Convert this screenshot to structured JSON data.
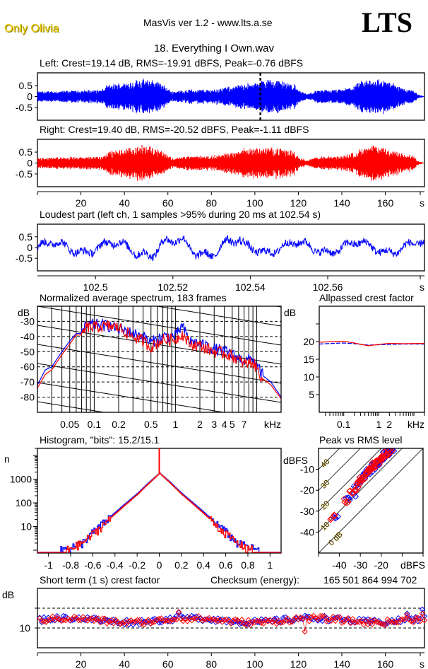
{
  "header": {
    "artist": "Only Olivia",
    "app_title": "MasVis ver 1.2 - www.lts.a.se",
    "logo": "LTS",
    "track": "18. Everything I Own.wav"
  },
  "colors": {
    "left": "#0000ff",
    "right": "#ff0000",
    "artist": "#e8c800"
  },
  "chart_data": [
    {
      "id": "left-waveform",
      "type": "line",
      "title": "Left: Crest=19.14 dB, RMS=-19.91 dBFS, Peak=-0.76 dBFS",
      "series": [
        {
          "name": "Left",
          "color": "#0000ff"
        }
      ],
      "xlim": [
        0,
        178
      ],
      "ylim": [
        -1,
        1
      ],
      "yticks": [
        0.5,
        0,
        -0.5
      ],
      "ytick_labels": [
        "0.5",
        "0",
        "-0.5"
      ],
      "marker_at_s": 102.54,
      "envelope": [
        [
          0,
          0.25
        ],
        [
          10,
          0.28
        ],
        [
          20,
          0.3
        ],
        [
          30,
          0.35
        ],
        [
          32,
          0.55
        ],
        [
          40,
          0.7
        ],
        [
          47,
          0.85
        ],
        [
          55,
          0.8
        ],
        [
          60,
          0.4
        ],
        [
          62,
          0.25
        ],
        [
          70,
          0.35
        ],
        [
          80,
          0.35
        ],
        [
          90,
          0.5
        ],
        [
          95,
          0.65
        ],
        [
          100,
          0.65
        ],
        [
          102,
          0.7
        ],
        [
          104,
          0.85
        ],
        [
          110,
          0.85
        ],
        [
          118,
          0.6
        ],
        [
          120,
          0.35
        ],
        [
          124,
          0.12
        ],
        [
          128,
          0.3
        ],
        [
          140,
          0.35
        ],
        [
          146,
          0.55
        ],
        [
          150,
          0.8
        ],
        [
          155,
          0.9
        ],
        [
          160,
          0.8
        ],
        [
          165,
          0.6
        ],
        [
          170,
          0.35
        ],
        [
          172,
          0.45
        ],
        [
          175,
          0.1
        ],
        [
          178,
          0.02
        ]
      ]
    },
    {
      "id": "right-waveform",
      "type": "line",
      "title": "Right: Crest=19.40 dB, RMS=-20.52 dBFS, Peak=-1.11 dBFS",
      "series": [
        {
          "name": "Right",
          "color": "#ff0000"
        }
      ],
      "xlim": [
        0,
        178
      ],
      "ylim": [
        -1,
        1
      ],
      "yticks": [
        0.5,
        0,
        -0.5
      ],
      "ytick_labels": [
        "0.5",
        "0",
        "-0.5"
      ],
      "xticks": [
        20,
        40,
        60,
        80,
        100,
        120,
        140,
        160
      ],
      "xlabel": "s",
      "envelope": [
        [
          0,
          0.25
        ],
        [
          10,
          0.28
        ],
        [
          20,
          0.3
        ],
        [
          30,
          0.35
        ],
        [
          32,
          0.55
        ],
        [
          40,
          0.7
        ],
        [
          47,
          0.85
        ],
        [
          55,
          0.75
        ],
        [
          60,
          0.4
        ],
        [
          62,
          0.25
        ],
        [
          70,
          0.35
        ],
        [
          80,
          0.35
        ],
        [
          90,
          0.55
        ],
        [
          95,
          0.7
        ],
        [
          105,
          0.75
        ],
        [
          110,
          0.75
        ],
        [
          118,
          0.6
        ],
        [
          120,
          0.35
        ],
        [
          124,
          0.12
        ],
        [
          128,
          0.3
        ],
        [
          140,
          0.35
        ],
        [
          146,
          0.55
        ],
        [
          150,
          0.75
        ],
        [
          155,
          0.85
        ],
        [
          160,
          0.75
        ],
        [
          165,
          0.6
        ],
        [
          170,
          0.35
        ],
        [
          172,
          0.45
        ],
        [
          175,
          0.1
        ],
        [
          178,
          0.02
        ]
      ]
    },
    {
      "id": "loudest-part",
      "type": "line",
      "title": "Loudest part (left  ch, 1 samples >95% during 20 ms at 102.54 s)",
      "series": [
        {
          "name": "Left",
          "color": "#0000ff"
        }
      ],
      "xlim": [
        102.485,
        102.585
      ],
      "ylim": [
        -1,
        1
      ],
      "xticks": [
        102.5,
        102.52,
        102.54,
        102.56
      ],
      "xtick_labels": [
        "102.5",
        "102.52",
        "102.54",
        "102.56"
      ],
      "xlabel": "s",
      "yticks": [
        0.5,
        0,
        -0.5
      ],
      "ytick_labels": [
        "0.5",
        "0",
        "-0.5"
      ]
    },
    {
      "id": "spectrum",
      "type": "line",
      "title": "Normalized average spectrum, 183 frames",
      "ylabel": "dB",
      "xlabel": "kHz",
      "xscale": "log",
      "xlim": [
        0.02,
        20
      ],
      "ylim": [
        -90,
        -20
      ],
      "yticks": [
        -30,
        -40,
        -50,
        -60,
        -70,
        -80
      ],
      "ytick_labels": [
        "-30",
        "-40",
        "-50",
        "-60",
        "-70",
        "-80"
      ],
      "xticks": [
        0.05,
        0.1,
        0.2,
        0.5,
        1,
        2,
        3,
        4,
        5,
        7
      ],
      "xtick_labels": [
        "0.05",
        "0.1",
        "0.2",
        "0.5",
        "1",
        "2",
        "3",
        "4",
        "5",
        "7"
      ],
      "series": [
        {
          "name": "Left",
          "color": "#0000ff",
          "x": [
            0.02,
            0.025,
            0.03,
            0.04,
            0.05,
            0.06,
            0.07,
            0.08,
            0.1,
            0.15,
            0.2,
            0.3,
            0.4,
            0.5,
            0.7,
            1,
            1.2,
            1.5,
            2,
            3,
            4,
            5,
            7,
            9,
            12,
            15,
            20
          ],
          "y": [
            -72,
            -62,
            -60,
            -50,
            -43,
            -38,
            -38,
            -33,
            -32,
            -33,
            -35,
            -38,
            -40,
            -44,
            -40,
            -40,
            -33,
            -43,
            -45,
            -48,
            -50,
            -52,
            -56,
            -55,
            -66,
            -70,
            -80
          ]
        },
        {
          "name": "Right",
          "color": "#ff0000",
          "x": [
            0.02,
            0.025,
            0.03,
            0.04,
            0.05,
            0.06,
            0.07,
            0.08,
            0.1,
            0.15,
            0.2,
            0.3,
            0.4,
            0.5,
            0.7,
            1,
            1.2,
            1.5,
            2,
            3,
            4,
            5,
            7,
            9,
            12,
            15,
            20
          ],
          "y": [
            -74,
            -65,
            -62,
            -52,
            -45,
            -39,
            -39,
            -34,
            -34,
            -33,
            -34,
            -40,
            -43,
            -47,
            -42,
            -42,
            -38,
            -45,
            -46,
            -50,
            -51,
            -53,
            -58,
            -57,
            -68,
            -72,
            -81
          ]
        }
      ]
    },
    {
      "id": "allpassed-crest",
      "type": "line",
      "title": "Allpassed crest factor",
      "ylabel": "dB",
      "xlabel": "kHz",
      "xscale": "log",
      "xlim": [
        0.02,
        20
      ],
      "ylim": [
        0,
        30
      ],
      "yticks": [
        20,
        15,
        10,
        5
      ],
      "ytick_labels": [
        "20",
        "15",
        "10",
        "5"
      ],
      "xtick_labels": [
        "0.1",
        "1",
        "2"
      ],
      "xticks": [
        0.1,
        1,
        2
      ],
      "series": [
        {
          "name": "Left",
          "color": "#0000ff",
          "x": [
            0.02,
            0.05,
            0.1,
            0.2,
            0.5,
            1,
            2,
            5,
            20
          ],
          "y": [
            19.3,
            19.5,
            19.6,
            19.4,
            19.0,
            19.1,
            19.2,
            19.3,
            19.3
          ]
        },
        {
          "name": "Right",
          "color": "#ff0000",
          "x": [
            0.02,
            0.05,
            0.1,
            0.2,
            0.5,
            1,
            2,
            5,
            20
          ],
          "y": [
            19.8,
            20.0,
            20.1,
            19.6,
            18.8,
            19.2,
            19.5,
            19.4,
            19.5
          ]
        }
      ]
    },
    {
      "id": "histogram",
      "type": "line",
      "title": "Histogram, \"bits\": 15.2/15.1",
      "ylabel": "n",
      "yscale": "log",
      "ylim": [
        1,
        20000
      ],
      "xlim": [
        -1.1,
        1.1
      ],
      "yticks": [
        1000,
        100,
        10
      ],
      "ytick_labels": [
        "1000",
        "100",
        "10"
      ],
      "xticks": [
        -1,
        -0.8,
        -0.6,
        -0.4,
        -0.2,
        0,
        0.2,
        0.4,
        0.6,
        0.8,
        1
      ],
      "xtick_labels": [
        "-1",
        "-0.8",
        "-0.6",
        "-0.4",
        "-0.2",
        "0",
        "0.2",
        "0.4",
        "0.6",
        "0.8",
        "1"
      ],
      "series": [
        {
          "name": "Left",
          "color": "#0000ff",
          "x": [
            -0.9,
            -0.7,
            -0.6,
            -0.5,
            -0.4,
            -0.3,
            -0.2,
            -0.1,
            0,
            0.1,
            0.2,
            0.3,
            0.4,
            0.5,
            0.6,
            0.7,
            0.9
          ],
          "y": [
            1,
            2,
            6,
            15,
            40,
            100,
            250,
            700,
            1800,
            700,
            250,
            100,
            40,
            15,
            6,
            2,
            1
          ]
        },
        {
          "name": "Right",
          "color": "#ff0000",
          "x": [
            -0.85,
            -0.7,
            -0.6,
            -0.5,
            -0.4,
            -0.3,
            -0.2,
            -0.1,
            0,
            0.1,
            0.2,
            0.3,
            0.4,
            0.5,
            0.6,
            0.7,
            0.85
          ],
          "y": [
            1,
            2,
            5,
            13,
            35,
            90,
            230,
            650,
            1800,
            650,
            230,
            90,
            35,
            13,
            5,
            2,
            1
          ]
        }
      ]
    },
    {
      "id": "peak-vs-rms",
      "type": "scatter",
      "title": "Peak vs RMS level",
      "ylabel": "dBFS",
      "xlabel": "dBFS",
      "xlim": [
        -50,
        0
      ],
      "ylim": [
        -50,
        0
      ],
      "xticks": [
        -40,
        -30,
        -20
      ],
      "xtick_labels": [
        "-40",
        "-30",
        "-20"
      ],
      "yticks": [
        -10,
        -20,
        -30,
        -40
      ],
      "ytick_labels": [
        "-10",
        "-20",
        "-30",
        "-40"
      ],
      "crest_lines_db": [
        0,
        10,
        20,
        30,
        40
      ],
      "crest_line_labels": [
        "0 dB",
        "10",
        "20",
        "30",
        "40"
      ],
      "series": [
        {
          "name": "Left",
          "color": "#0000ff",
          "x": [
            -42,
            -36,
            -33,
            -32,
            -30,
            -29,
            -28,
            -27,
            -26,
            -25,
            -24,
            -23,
            -22,
            -21,
            -20,
            -19,
            -18,
            -17,
            -16,
            -15,
            -15
          ],
          "y": [
            -33,
            -24,
            -22,
            -18,
            -15,
            -14,
            -13,
            -12,
            -11,
            -10,
            -9,
            -8,
            -7,
            -6,
            -5,
            -4,
            -3,
            -2,
            -1,
            -1,
            -2
          ]
        },
        {
          "name": "Right",
          "color": "#ff0000",
          "x": [
            -43,
            -37,
            -34,
            -32,
            -31,
            -30,
            -29,
            -28,
            -27,
            -26,
            -25,
            -24,
            -23,
            -22,
            -21,
            -20,
            -19,
            -18,
            -17,
            -16
          ],
          "y": [
            -33,
            -25,
            -21,
            -19,
            -16,
            -15,
            -14,
            -13,
            -12,
            -11,
            -10,
            -9,
            -8,
            -7,
            -6,
            -5,
            -4,
            -3,
            -2,
            -1
          ]
        }
      ]
    },
    {
      "id": "short-term-crest",
      "type": "scatter",
      "title": "Short term (1 s) crest factor",
      "checksum_label": "Checksum (energy):",
      "checksum_value": "165 501 864 994 702",
      "ylabel": "dB",
      "xlabel": "s",
      "xlim": [
        0,
        178
      ],
      "ylim": [
        5,
        20
      ],
      "yticks": [
        10
      ],
      "ytick_labels": [
        "10"
      ],
      "dashed_lines": [
        10,
        15
      ],
      "xticks": [
        20,
        40,
        60,
        80,
        100,
        120,
        140,
        160
      ],
      "series": [
        {
          "name": "Left",
          "color": "#0000ff",
          "mean": 12.0
        },
        {
          "name": "Right",
          "color": "#ff0000",
          "mean": 11.9
        }
      ]
    }
  ]
}
